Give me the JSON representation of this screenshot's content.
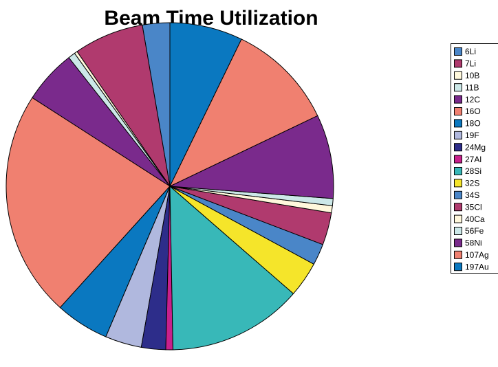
{
  "chart_data": {
    "type": "pie",
    "title": "Beam Time Utilization",
    "categories": [
      "6Li",
      "7Li",
      "10B",
      "11B",
      "12C",
      "16O",
      "18O",
      "19F",
      "24Mg",
      "27Al",
      "28Si",
      "32S",
      "34S",
      "35Cl",
      "40Ca",
      "56Fe",
      "58Ni",
      "107Ag",
      "197Au"
    ],
    "values": [
      2.7,
      6.9,
      0.3,
      0.7,
      5.3,
      22.4,
      5.3,
      3.6,
      2.4,
      0.7,
      13.3,
      3.5,
      2.1,
      3.2,
      0.7,
      0.7,
      8.3,
      10.7,
      7.2
    ],
    "colors": [
      "#4a86c8",
      "#b03a6e",
      "#fff8dc",
      "#cce8e8",
      "#7a2a8c",
      "#f08070",
      "#0a78c0",
      "#b0b8de",
      "#2d2d8a",
      "#c8208c",
      "#38b8b8",
      "#f5e52a",
      "#4a86c8",
      "#b03a6e",
      "#fff8dc",
      "#cce8e8",
      "#7a2a8c",
      "#f08070",
      "#0a78c0"
    ],
    "legend": "right"
  }
}
